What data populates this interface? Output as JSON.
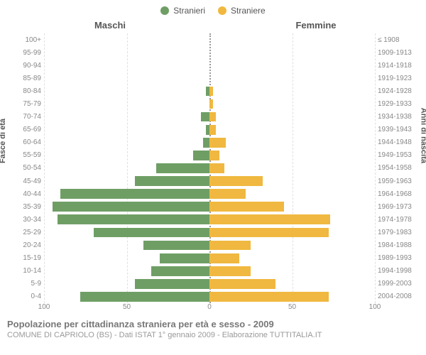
{
  "chart": {
    "type": "population-pyramid",
    "legend": {
      "left": {
        "label": "Stranieri",
        "color": "#6f9e65"
      },
      "right": {
        "label": "Straniere",
        "color": "#f0b840"
      }
    },
    "headers": {
      "left": "Maschi",
      "right": "Femmine"
    },
    "axis_titles": {
      "left": "Fasce di età",
      "right": "Anni di nascita"
    },
    "age_groups": [
      "100+",
      "95-99",
      "90-94",
      "85-89",
      "80-84",
      "75-79",
      "70-74",
      "65-69",
      "60-64",
      "55-59",
      "50-54",
      "45-49",
      "40-44",
      "35-39",
      "30-34",
      "25-29",
      "20-24",
      "15-19",
      "10-14",
      "5-9",
      "0-4"
    ],
    "birth_years": [
      "≤ 1908",
      "1909-1913",
      "1914-1918",
      "1919-1923",
      "1924-1928",
      "1929-1933",
      "1934-1938",
      "1939-1943",
      "1944-1948",
      "1949-1953",
      "1954-1958",
      "1959-1963",
      "1964-1968",
      "1969-1973",
      "1974-1978",
      "1979-1983",
      "1984-1988",
      "1989-1993",
      "1994-1998",
      "1999-2003",
      "2004-2008"
    ],
    "males": [
      0,
      0,
      0,
      0,
      2,
      0,
      5,
      2,
      4,
      10,
      32,
      45,
      90,
      95,
      92,
      70,
      40,
      30,
      35,
      45,
      78
    ],
    "females": [
      0,
      0,
      0,
      0,
      2,
      2,
      4,
      4,
      10,
      6,
      9,
      32,
      22,
      45,
      73,
      72,
      25,
      18,
      25,
      40,
      72
    ],
    "xlim": 100,
    "xticks": [
      100,
      50,
      0,
      50,
      100
    ],
    "xtick_positions_pct": [
      0,
      25,
      50,
      75,
      100
    ],
    "series_colors": {
      "male": "#6f9e65",
      "female": "#f0b840"
    },
    "grid_color": "#e0e0e0",
    "center_line_color": "#999999",
    "background_color": "#ffffff",
    "bar_height_pct": 76
  },
  "caption": {
    "title": "Popolazione per cittadinanza straniera per età e sesso - 2009",
    "subtitle": "COMUNE DI CAPRIOLO (BS) - Dati ISTAT 1° gennaio 2009 - Elaborazione TUTTITALIA.IT"
  },
  "typography": {
    "legend_fontsize": 12,
    "header_fontsize": 13,
    "tick_fontsize": 10,
    "axis_title_fontsize": 11,
    "caption_fontsize": 13,
    "subcaption_fontsize": 11,
    "text_color": "#555555",
    "muted_text_color": "#888888"
  }
}
